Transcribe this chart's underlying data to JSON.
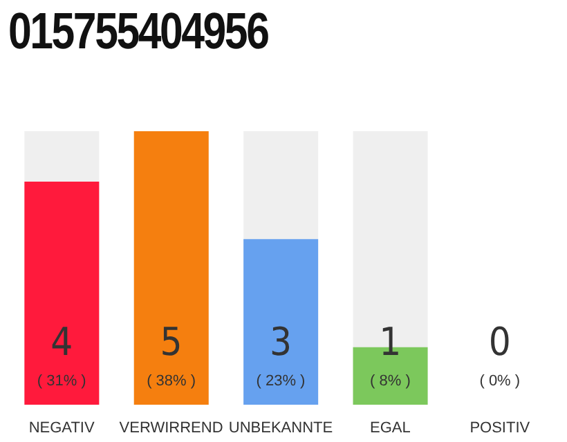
{
  "chart_data": {
    "type": "bar",
    "title": "015755404956",
    "categories": [
      "NEGATIV",
      "VERWIRREND",
      "UNBEKANNTE",
      "EGAL",
      "POSITIV"
    ],
    "values": [
      31,
      38,
      23,
      8,
      0
    ],
    "colors": [
      "#ff1a3c",
      "#f57f0f",
      "#66a1ef",
      "#7cc85c",
      "#5a9ff0"
    ],
    "value_labels": [
      "( 31% )",
      "( 38% )",
      "( 23% )",
      "( 8% )",
      "( 0% )"
    ],
    "annotations": [
      "4",
      "5",
      "3",
      "1",
      "0"
    ],
    "tick_labels": "x"
  }
}
